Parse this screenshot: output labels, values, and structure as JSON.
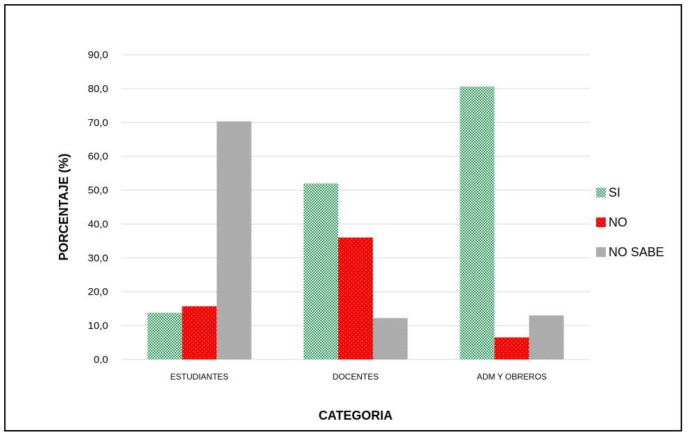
{
  "chart_data": {
    "type": "bar",
    "title": "",
    "xlabel": "CATEGORIA",
    "ylabel": "PORCENTAJE (%)",
    "categories": [
      "ESTUDIANTES",
      "DOCENTES",
      "ADM Y OBREROS"
    ],
    "series": [
      {
        "name": "SI",
        "values": [
          13.8,
          52.0,
          80.6
        ],
        "color": "#1a9e4b",
        "pattern": "checker"
      },
      {
        "name": "NO",
        "values": [
          15.7,
          36.0,
          6.5
        ],
        "color": "#ff0000",
        "pattern": "dots"
      },
      {
        "name": "NO SABE",
        "values": [
          70.3,
          12.2,
          13.0
        ],
        "color": "#a6a6a6",
        "pattern": "fine-checker"
      }
    ],
    "ylim": [
      0,
      90
    ],
    "yticks": [
      "0,0",
      "10,0",
      "20,0",
      "30,0",
      "40,0",
      "50,0",
      "60,0",
      "70,0",
      "80,0",
      "90,0"
    ],
    "grid": true,
    "legend_position": "right"
  }
}
